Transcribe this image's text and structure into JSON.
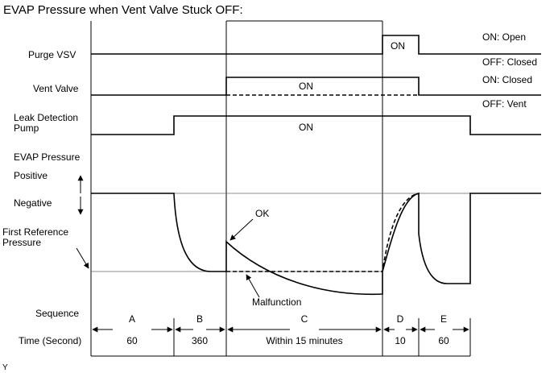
{
  "title": "EVAP Pressure when Vent Valve Stuck OFF:",
  "signals": {
    "purge_vsv": "Purge VSV",
    "vent_valve": "Vent Valve",
    "leak_pump_1": "Leak Detection",
    "leak_pump_2": "Pump",
    "evap_pressure": "EVAP Pressure",
    "positive": "Positive",
    "negative": "Negative",
    "first_ref_1": "First Reference",
    "first_ref_2": "Pressure"
  },
  "states": {
    "on_open": "ON: Open",
    "off_closed": "OFF: Closed",
    "on_closed": "ON: Closed",
    "off_vent": "OFF: Vent"
  },
  "on_labels": {
    "purge": "ON",
    "vent": "ON",
    "pump": "ON"
  },
  "annotations": {
    "ok": "OK",
    "malfunction": "Malfunction"
  },
  "sequence_label": "Sequence",
  "time_label": "Time (Second)",
  "phases": [
    {
      "name": "A",
      "time": "60"
    },
    {
      "name": "B",
      "time": "360"
    },
    {
      "name": "C",
      "time": "Within 15 minutes"
    },
    {
      "name": "D",
      "time": "10"
    },
    {
      "name": "E",
      "time": "60"
    }
  ],
  "footnote": "Y"
}
